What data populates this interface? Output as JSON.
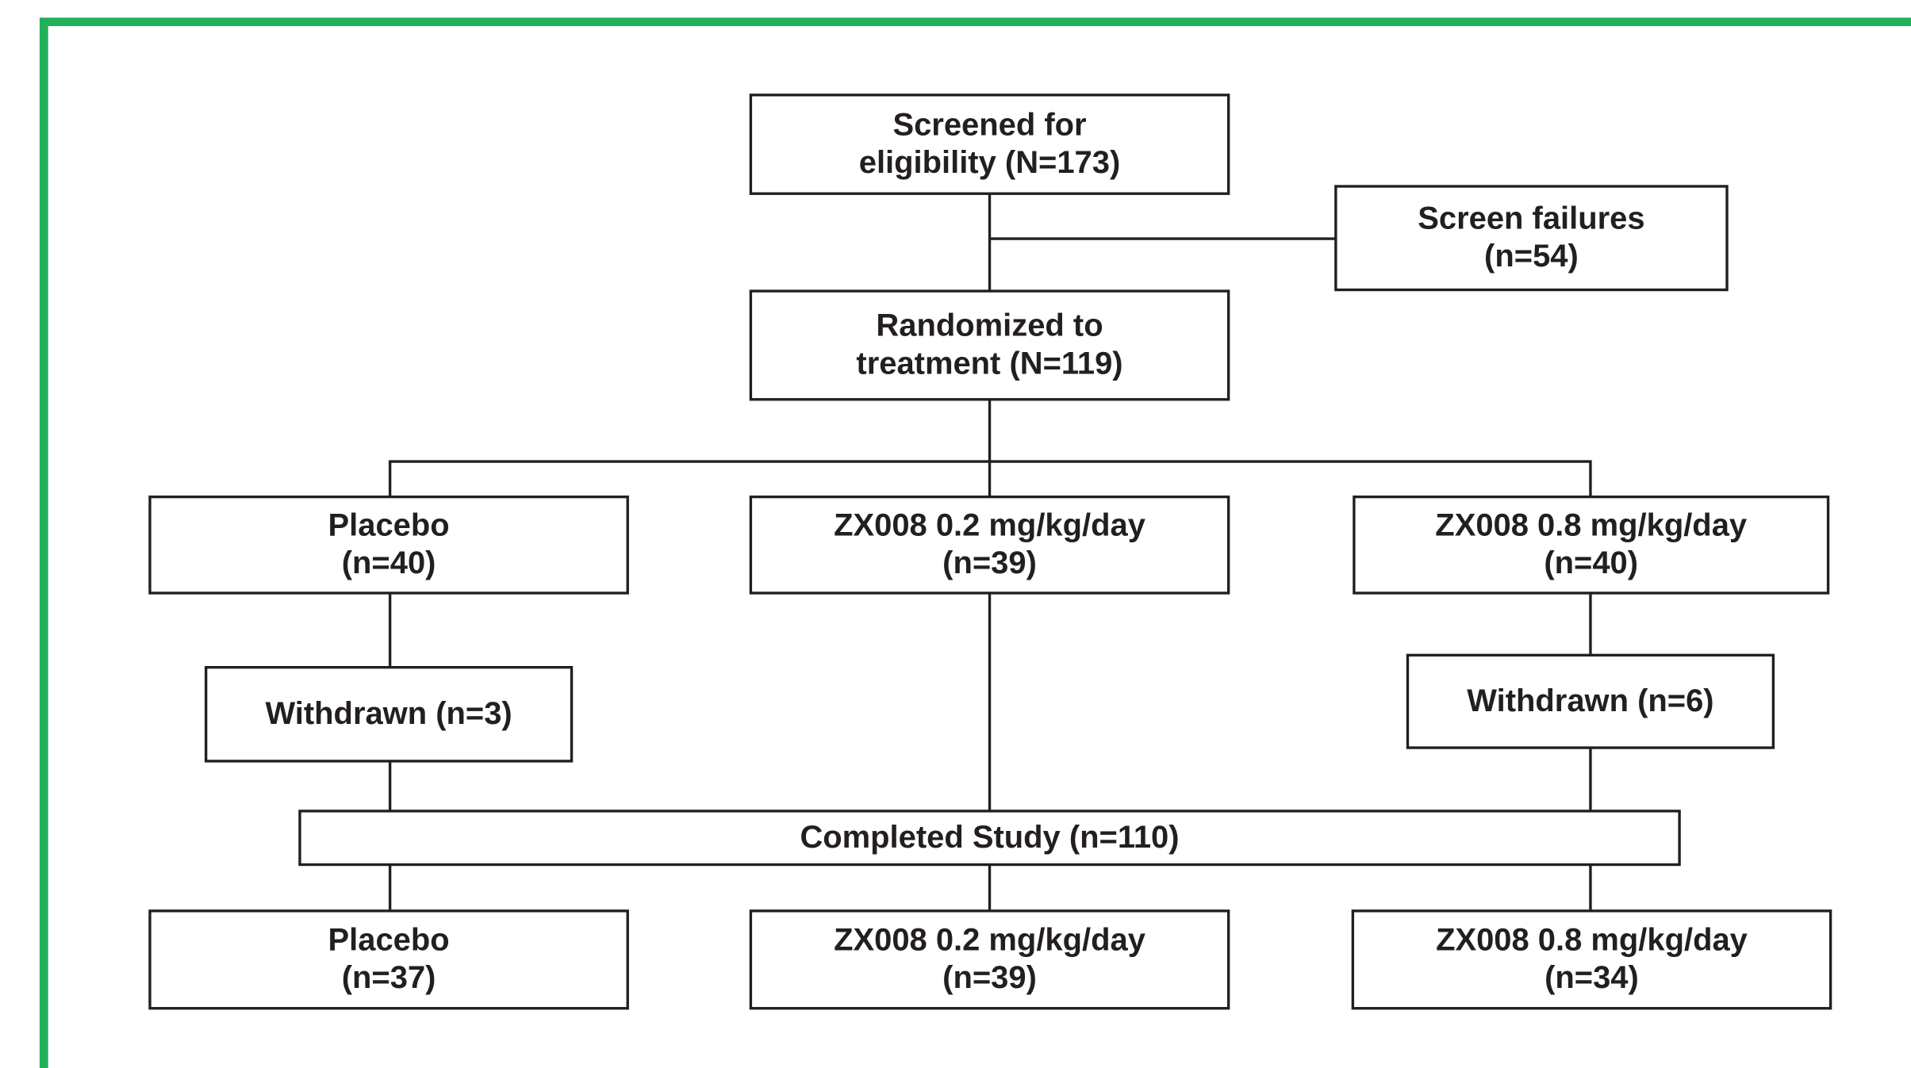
{
  "nodes": [
    {
      "lines": [
        "Screened for",
        "eligibility (N=173)"
      ]
    },
    {
      "lines": [
        "Screen failures",
        "(n=54)"
      ]
    },
    {
      "lines": [
        "Randomized to",
        "treatment (N=119)"
      ]
    },
    {
      "lines": [
        "Placebo",
        "(n=40)"
      ]
    },
    {
      "lines": [
        "ZX008 0.2 mg/kg/day",
        "(n=39)"
      ]
    },
    {
      "lines": [
        "ZX008 0.8 mg/kg/day",
        "(n=40)"
      ]
    },
    {
      "lines": [
        "Withdrawn (n=3)"
      ]
    },
    {
      "lines": [
        "Withdrawn (n=6)"
      ]
    },
    {
      "lines": [
        "Completed Study (n=110)"
      ]
    },
    {
      "lines": [
        "Placebo",
        "(n=37)"
      ]
    },
    {
      "lines": [
        "ZX008 0.2 mg/kg/day",
        "(n=39)"
      ]
    },
    {
      "lines": [
        "ZX008 0.8 mg/kg/day",
        "(n=34)"
      ]
    }
  ]
}
